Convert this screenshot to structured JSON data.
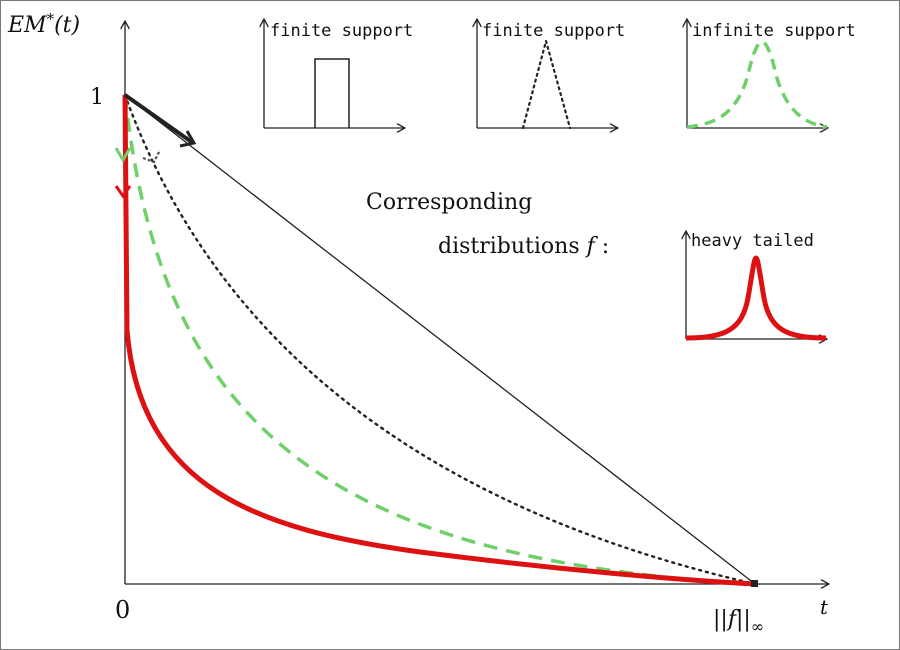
{
  "labels": {
    "y_axis": "EM*(t)",
    "y_axis_main": "EM",
    "y_axis_sup": "*",
    "y_axis_arg": "(t)",
    "x_axis": "t",
    "y_tick_one": "1",
    "x_tick_zero": "0",
    "x_tick_end": "||f||",
    "x_tick_end_sub": "∞",
    "caption_line1": "Corresponding",
    "caption_line2": "distributions f :",
    "caption_line2_text": "distributions ",
    "caption_line2_var": "f",
    "caption_line2_colon": " :"
  },
  "insets": [
    {
      "id": "uniform",
      "label": "finite support",
      "shape": "rectangle",
      "color": "#222222",
      "style": "solid"
    },
    {
      "id": "triangle",
      "label": "finite support",
      "shape": "triangle",
      "color": "#222222",
      "style": "dotted"
    },
    {
      "id": "bell",
      "label": "infinite support",
      "shape": "bell",
      "color": "#6fd06a",
      "style": "dashed"
    },
    {
      "id": "heavy",
      "label": "heavy tailed",
      "shape": "spike",
      "color": "#dd1111",
      "style": "solid"
    }
  ],
  "curves": [
    {
      "id": "linear",
      "distribution": "uniform",
      "color": "#222222",
      "style": "solid"
    },
    {
      "id": "dotted",
      "distribution": "triangle",
      "color": "#222222",
      "style": "dotted"
    },
    {
      "id": "dashed",
      "distribution": "bell",
      "color": "#6fd06a",
      "style": "dashed"
    },
    {
      "id": "heavy",
      "distribution": "heavy",
      "color": "#dd1111",
      "style": "solid"
    }
  ],
  "colors": {
    "black": "#222222",
    "green": "#6fd06a",
    "red": "#dd1111"
  }
}
